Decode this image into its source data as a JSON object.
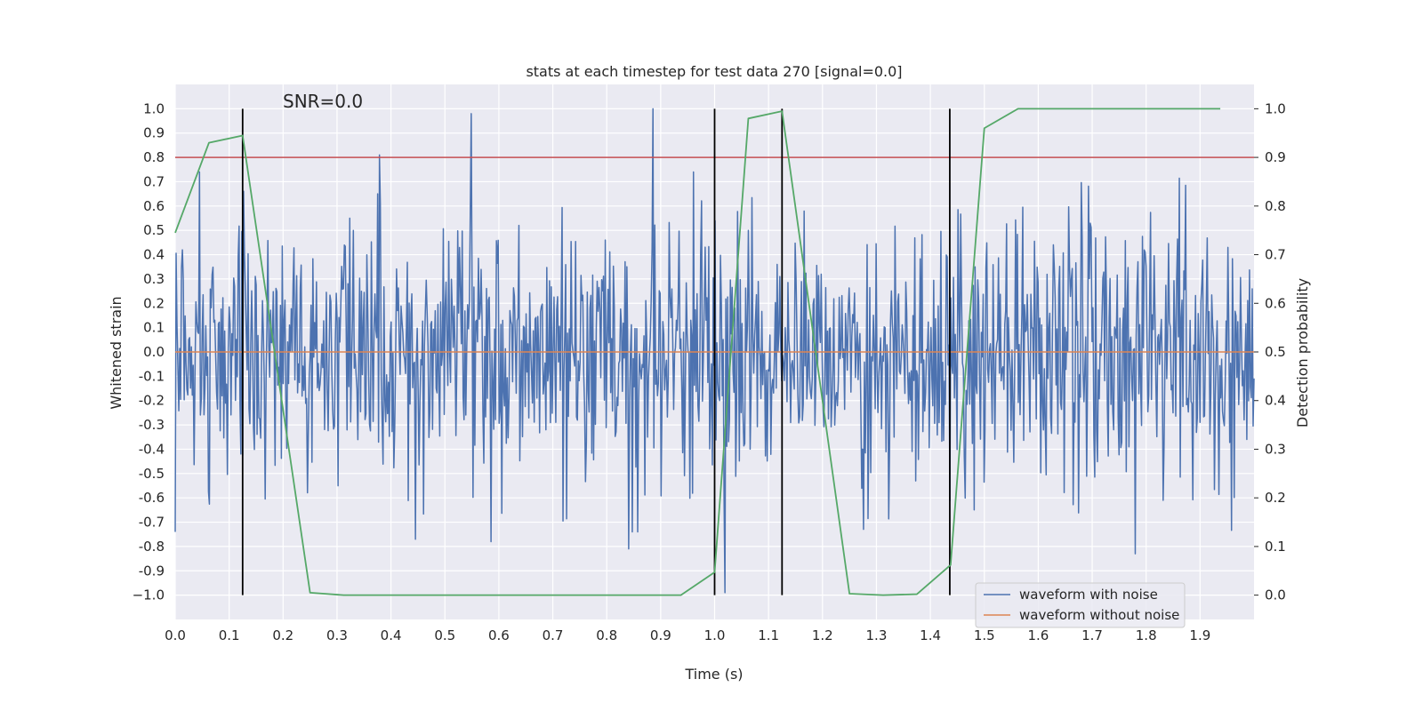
{
  "chart_data": {
    "type": "line",
    "title": "stats at each timestep for test data 270 [signal=0.0]",
    "xlabel": "Time (s)",
    "ylabel": "Whitened strain",
    "y2label": "Detection probability",
    "annotation": "SNR=0.0",
    "xlim": [
      0.0,
      2.0
    ],
    "ylim": [
      -1.1,
      1.1
    ],
    "y2lim": [
      -0.05,
      1.05
    ],
    "grid": true,
    "x_ticks": [
      "0.0",
      "0.1",
      "0.2",
      "0.3",
      "0.4",
      "0.5",
      "0.6",
      "0.7",
      "0.8",
      "0.9",
      "1.0",
      "1.1",
      "1.2",
      "1.3",
      "1.4",
      "1.5",
      "1.6",
      "1.7",
      "1.8",
      "1.9"
    ],
    "y_ticks": [
      "1.0",
      "0.9",
      "0.8",
      "0.7",
      "0.6",
      "0.5",
      "0.4",
      "0.3",
      "0.2",
      "0.1",
      "0.0",
      "-0.1",
      "-0.2",
      "-0.3",
      "-0.4",
      "-0.5",
      "-0.6",
      "-0.7",
      "-0.8",
      "-0.9",
      "−1.0"
    ],
    "y2_ticks": [
      "1.0",
      "0.9",
      "0.8",
      "0.7",
      "0.6",
      "0.5",
      "0.4",
      "0.3",
      "0.2",
      "0.1",
      "0.0"
    ],
    "series": [
      {
        "name": "waveform with noise",
        "color": "#4c72b0",
        "axis": "left",
        "kind": "noise",
        "t_start": 0.0,
        "t_end": 2.0,
        "samples": 1200,
        "amplitude_sigma": 0.27,
        "spikes": [
          {
            "t": 0.378,
            "v": 0.81
          },
          {
            "t": 0.549,
            "v": 0.98
          },
          {
            "t": 0.886,
            "v": 1.0
          },
          {
            "t": 0.84,
            "v": -0.81
          },
          {
            "t": 1.02,
            "v": -0.99
          },
          {
            "t": 1.78,
            "v": -0.83
          },
          {
            "t": 0.445,
            "v": -0.77
          },
          {
            "t": 0.586,
            "v": -0.78
          }
        ]
      },
      {
        "name": "waveform without noise",
        "color": "#dd8452",
        "axis": "left",
        "x": [
          0.0,
          2.0
        ],
        "y": [
          0.0,
          0.0
        ]
      },
      {
        "name": "detection probability",
        "color": "#55a868",
        "axis": "right",
        "x": [
          0.0,
          0.0625,
          0.125,
          0.25,
          0.3125,
          0.9375,
          1.0,
          1.0625,
          1.125,
          1.25,
          1.3125,
          1.375,
          1.4375,
          1.5,
          1.5625,
          1.9375
        ],
        "y": [
          0.745,
          0.93,
          0.945,
          0.005,
          0.0,
          0.0,
          0.047,
          0.98,
          0.995,
          0.003,
          0.0,
          0.002,
          0.062,
          0.96,
          1.0,
          1.0
        ]
      }
    ],
    "threshold": {
      "value": 0.8,
      "axis": "left",
      "color": "#c44e52"
    },
    "vlines": {
      "x": [
        0.125,
        1.0,
        1.125,
        1.436
      ],
      "ymin": -1.0,
      "ymax": 1.0,
      "color": "#000000"
    },
    "legend": {
      "placement": "lower-right",
      "entries": [
        {
          "label": "waveform with noise",
          "color": "#4c72b0"
        },
        {
          "label": "waveform without noise",
          "color": "#dd8452"
        }
      ]
    }
  }
}
